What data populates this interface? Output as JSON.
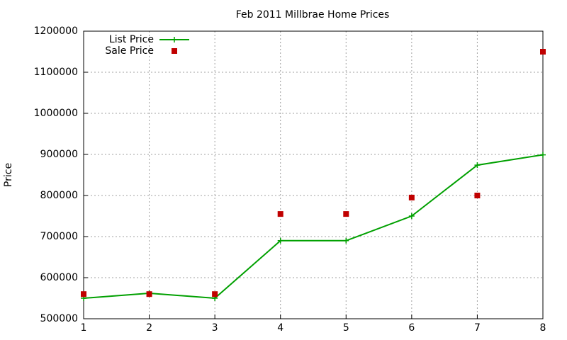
{
  "chart_data": {
    "type": "line",
    "title": "Feb 2011 Millbrae Home Prices",
    "y_label": "Price",
    "x": [
      1,
      2,
      3,
      4,
      5,
      6,
      7,
      8
    ],
    "series": [
      {
        "name": "List Price",
        "color": "#00a000",
        "style": "linespoints",
        "values": [
          550000,
          562000,
          550000,
          690000,
          690000,
          750000,
          874000,
          899000
        ]
      },
      {
        "name": "Sale Price",
        "color": "#c00000",
        "style": "points",
        "values": [
          560000,
          560000,
          560000,
          755000,
          755000,
          795000,
          800000,
          1150000
        ]
      }
    ],
    "xlim": [
      1,
      8
    ],
    "xticks": [
      1,
      2,
      3,
      4,
      5,
      6,
      7,
      8
    ],
    "ylim": [
      500000,
      1200000
    ],
    "yticks": [
      500000,
      600000,
      700000,
      800000,
      900000,
      1000000,
      1100000,
      1200000
    ],
    "grid": true,
    "legend": "top-left"
  }
}
